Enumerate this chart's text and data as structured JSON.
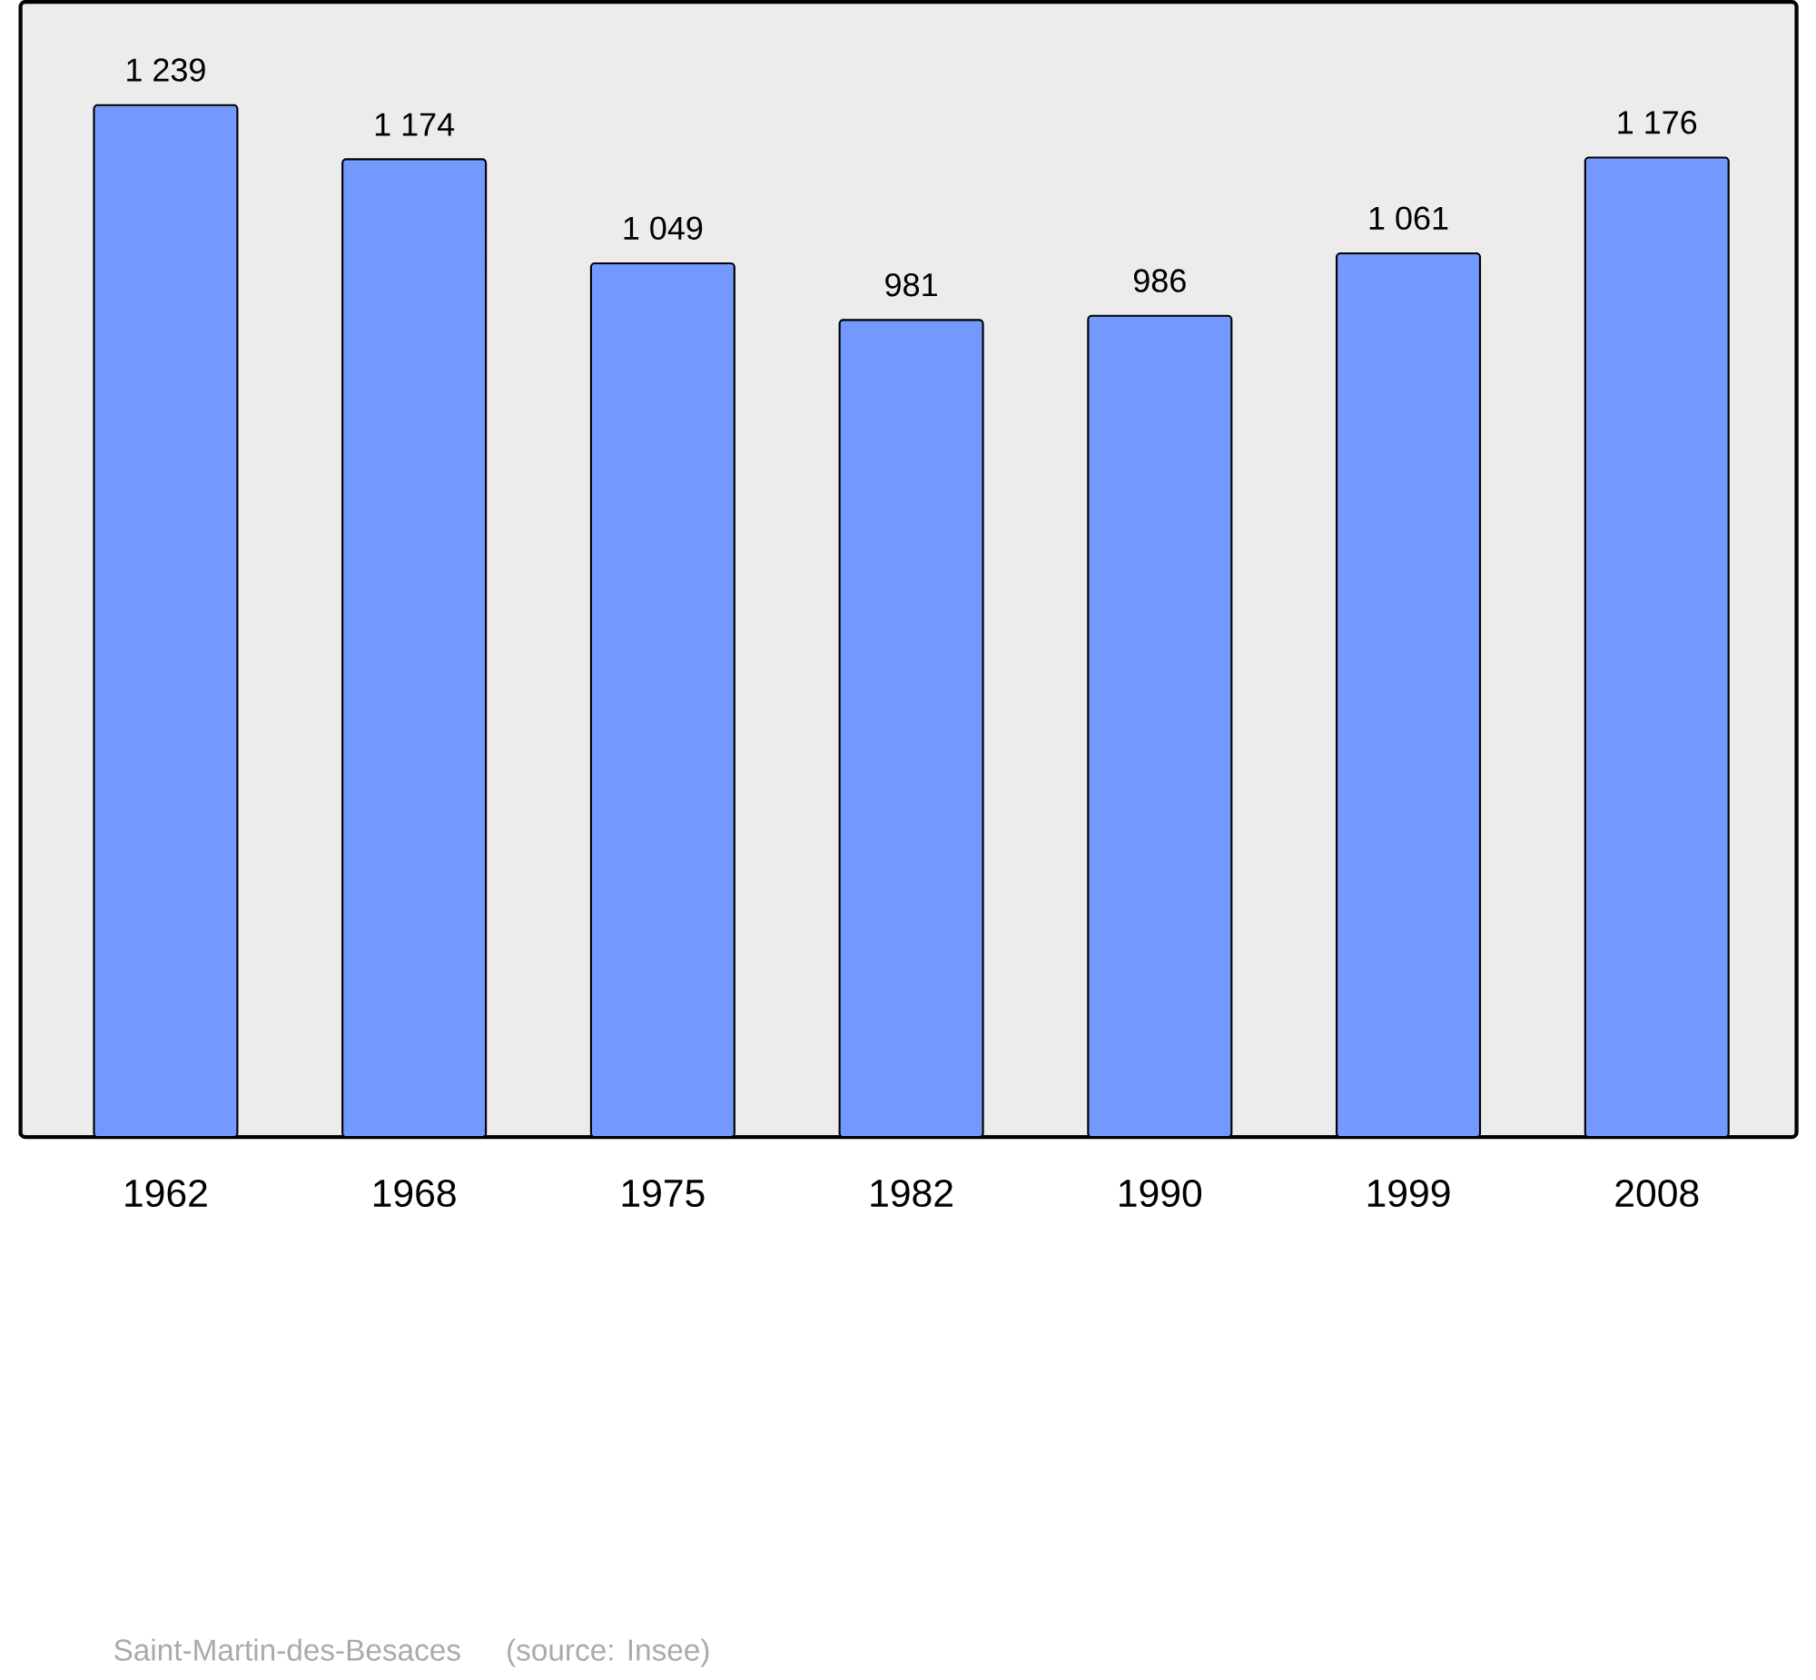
{
  "chart_data": {
    "type": "bar",
    "categories": [
      "1962",
      "1968",
      "1975",
      "1982",
      "1990",
      "1999",
      "2008"
    ],
    "values": [
      1239,
      1174,
      1049,
      981,
      986,
      1061,
      1176
    ],
    "value_labels": [
      "1 239",
      "1 174",
      "1 049",
      "981",
      "986",
      "1 061",
      "1 176"
    ],
    "color": "#7399ff",
    "annotations": [
      "Saint-Martin-des-Besaces",
      "(source: Insee)"
    ]
  }
}
